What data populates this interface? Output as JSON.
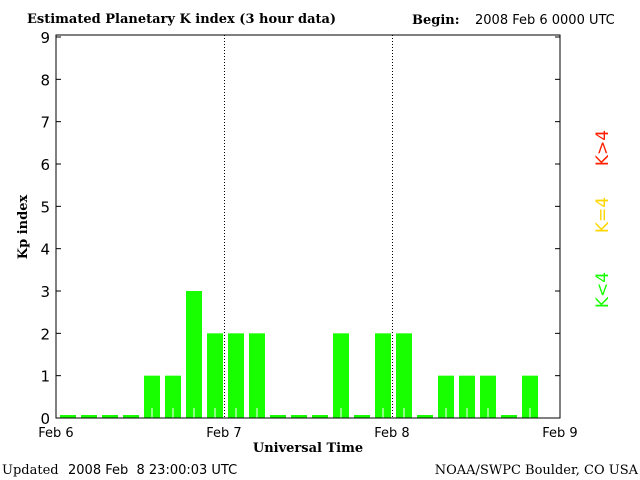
{
  "chart_data": {
    "type": "bar",
    "title": "Estimated Planetary K index (3 hour data)",
    "begin_label": "Begin:",
    "begin_value": "2008 Feb 6 0000 UTC",
    "xlabel": "Universal Time",
    "ylabel": "Kp index",
    "ylim": [
      0,
      9
    ],
    "yticks": [
      "0",
      "1",
      "2",
      "3",
      "4",
      "5",
      "6",
      "7",
      "8",
      "9"
    ],
    "xticks": [
      "Feb 6",
      "Feb 7",
      "Feb 8",
      "Feb 9"
    ],
    "bar_interval_hours": 3,
    "values": [
      0,
      0,
      0,
      0,
      1,
      1,
      3,
      2,
      2,
      2,
      0,
      0,
      0,
      2,
      0,
      2,
      2,
      0,
      1,
      1,
      1,
      0,
      1
    ],
    "colors": {
      "low": "#18ff00",
      "storm4": "#ffd700",
      "high": "#ff2000"
    },
    "legend": {
      "low": "K<4",
      "eq": "K=4",
      "high": "K>4"
    },
    "grid": "dotted vertical at day boundaries"
  },
  "footer": {
    "updated_label": "Updated",
    "updated_value": "2008 Feb  8 23:00:03 UTC",
    "credit": "NOAA/SWPC Boulder, CO USA"
  }
}
